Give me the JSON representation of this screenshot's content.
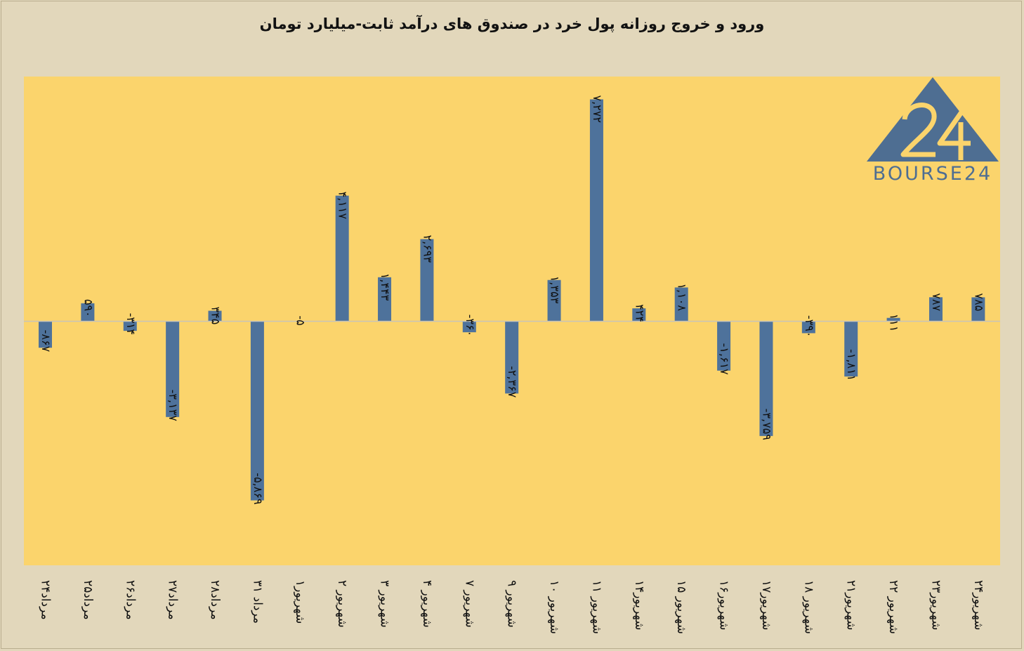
{
  "chart_data": {
    "type": "bar",
    "title": "ورود و خروج روزانه پول خرد در صندوق های درآمد ثابت-میلیارد تومان",
    "categories": [
      "۲۴مرداد",
      "۲۵مرداد",
      "۲۶مرداد",
      "۲۷مرداد",
      "۲۸مرداد",
      "۳۱ مرداد",
      "۱شهریور",
      "۲ شهریور",
      "۳ شهریور",
      "۴ شهریور",
      "۷ شهریور",
      "۹ شهریور",
      "۱۰ شهریور",
      "۱۱ شهریور",
      "۱۴شهریور",
      "۱۵ شهریور",
      "۱۶شهریور",
      "۱۷شهریور",
      "۱۸ شهریور",
      "۲۱شهریور",
      "۲۲ شهریور",
      "۲۳شهریور",
      "۲۴شهریور"
    ],
    "values": [
      -867,
      590,
      -314,
      -3137,
      345,
      -5869,
      -5,
      4117,
      1443,
      2693,
      -360,
      -2367,
      1353,
      7272,
      424,
      1108,
      -1617,
      -3759,
      -390,
      -1811,
      111,
      787,
      785
    ],
    "value_labels": [
      "-۸۶۷",
      "۵۹۰",
      "-۳۱۴",
      "-۳,۱۳۷",
      "۳۴۵",
      "-۵,۸۶۹",
      "-۵",
      "۴,۱۱۷",
      "۱,۴۴۳",
      "۲,۶۹۳",
      "-۳۶۰",
      "-۲,۳۶۷",
      "۱,۳۵۳",
      "۷,۲۷۲",
      "۴۲۴",
      "۱,۱۰۸",
      "-۱,۶۱۷",
      "-۳,۷۵۹",
      "-۳۹۰",
      "-۱,۸۱۱",
      "۱۱۱",
      "۷۸۷",
      "۷۸۵"
    ],
    "ylim": [
      -8000,
      8000
    ],
    "grid": false,
    "legend": "none",
    "colors": {
      "bar": "#4e729b",
      "plot_bg": "#fbd46c",
      "page_bg": "#e2d7bb",
      "axis": "#c8c4b8"
    }
  },
  "logo": {
    "text": "BOURSE24",
    "color": "#4e6e92"
  }
}
